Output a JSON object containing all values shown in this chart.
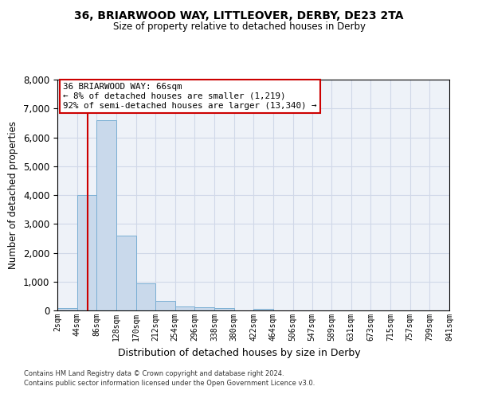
{
  "title_line1": "36, BRIARWOOD WAY, LITTLEOVER, DERBY, DE23 2TA",
  "title_line2": "Size of property relative to detached houses in Derby",
  "xlabel": "Distribution of detached houses by size in Derby",
  "ylabel": "Number of detached properties",
  "annotation_line1": "36 BRIARWOOD WAY: 66sqm",
  "annotation_line2": "← 8% of detached houses are smaller (1,219)",
  "annotation_line3": "92% of semi-detached houses are larger (13,340) →",
  "property_size_sqm": 66,
  "bin_edges": [
    2,
    44,
    86,
    128,
    170,
    212,
    254,
    296,
    338,
    380,
    422,
    464,
    506,
    547,
    589,
    631,
    673,
    715,
    757,
    799,
    841
  ],
  "bar_heights": [
    75,
    4000,
    6600,
    2600,
    950,
    320,
    150,
    100,
    75,
    10,
    65,
    5,
    5,
    5,
    5,
    5,
    5,
    5,
    5,
    5
  ],
  "bar_color": "#c9d9eb",
  "bar_edgecolor": "#7bafd4",
  "vline_color": "#cc0000",
  "vline_x": 66,
  "annotation_box_edgecolor": "#cc0000",
  "annotation_box_facecolor": "white",
  "ylim": [
    0,
    8000
  ],
  "yticks": [
    0,
    1000,
    2000,
    3000,
    4000,
    5000,
    6000,
    7000,
    8000
  ],
  "grid_color": "#d0d8e8",
  "background_color": "#eef2f8",
  "footer_line1": "Contains HM Land Registry data © Crown copyright and database right 2024.",
  "footer_line2": "Contains public sector information licensed under the Open Government Licence v3.0."
}
